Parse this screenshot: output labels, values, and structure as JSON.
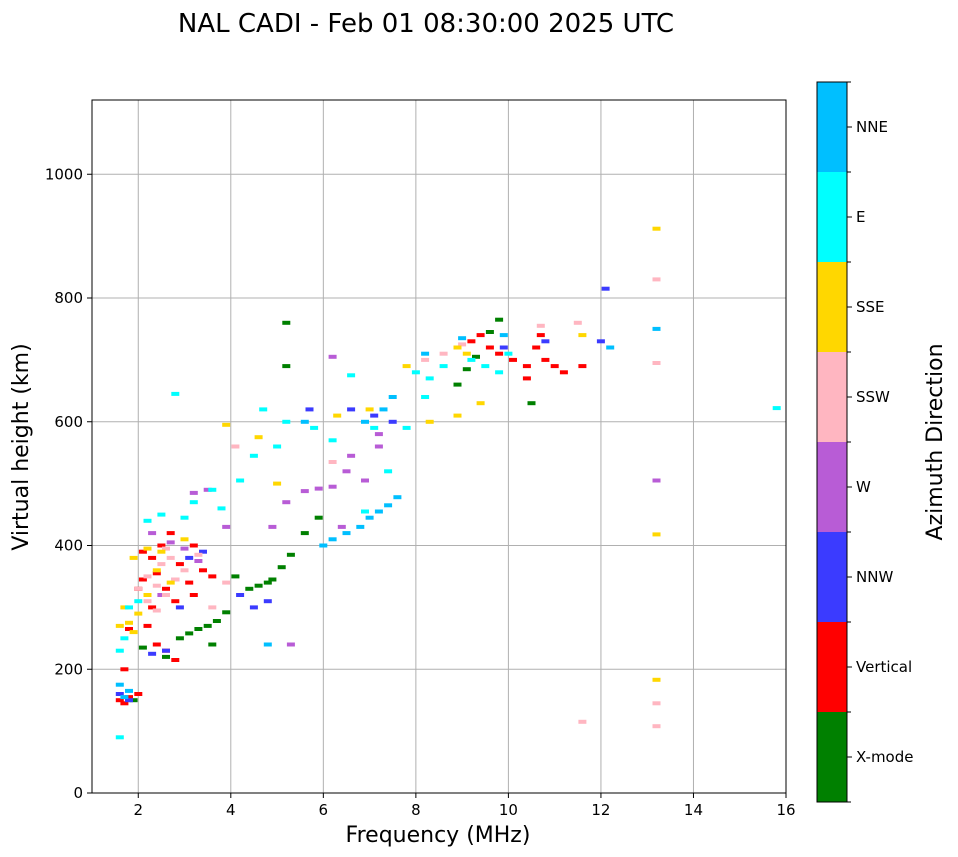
{
  "chart_data": {
    "type": "scatter",
    "title": "NAL CADI - Feb 01 08:30:00 2025 UTC",
    "xlabel": "Frequency (MHz)",
    "ylabel": "Virtual height (km)",
    "xlim": [
      1,
      16
    ],
    "ylim": [
      0,
      1120
    ],
    "xticks": [
      2,
      4,
      6,
      8,
      10,
      12,
      14,
      16
    ],
    "yticks": [
      0,
      200,
      400,
      600,
      800,
      1000
    ],
    "grid": true,
    "colorbar": {
      "label": "Azimuth Direction",
      "categories": [
        {
          "name": "X-mode",
          "color": "#008000"
        },
        {
          "name": "Vertical",
          "color": "#ff0000"
        },
        {
          "name": "NNW",
          "color": "#3b3bff"
        },
        {
          "name": "W",
          "color": "#b85cd6"
        },
        {
          "name": "SSW",
          "color": "#ffb6c1"
        },
        {
          "name": "SSE",
          "color": "#ffd700"
        },
        {
          "name": "E",
          "color": "#00ffff"
        },
        {
          "name": "NNE",
          "color": "#00bfff"
        }
      ]
    },
    "series": [
      {
        "name": "X-mode",
        "points": [
          [
            1.9,
            150
          ],
          [
            2.6,
            220
          ],
          [
            2.9,
            250
          ],
          [
            3.1,
            258
          ],
          [
            3.3,
            265
          ],
          [
            3.5,
            270
          ],
          [
            3.7,
            278
          ],
          [
            3.9,
            292
          ],
          [
            4.1,
            350
          ],
          [
            4.4,
            330
          ],
          [
            4.6,
            335
          ],
          [
            4.9,
            345
          ],
          [
            5.1,
            365
          ],
          [
            5.3,
            385
          ],
          [
            5.6,
            420
          ],
          [
            5.9,
            445
          ],
          [
            5.2,
            760
          ],
          [
            5.2,
            690
          ],
          [
            8.9,
            660
          ],
          [
            9.1,
            685
          ],
          [
            9.3,
            705
          ],
          [
            9.6,
            745
          ],
          [
            9.8,
            765
          ],
          [
            10.5,
            630
          ],
          [
            2.1,
            235
          ],
          [
            4.8,
            340
          ],
          [
            3.6,
            240
          ]
        ]
      },
      {
        "name": "Vertical",
        "points": [
          [
            1.6,
            150
          ],
          [
            1.7,
            145
          ],
          [
            1.8,
            155
          ],
          [
            2.0,
            160
          ],
          [
            1.7,
            200
          ],
          [
            1.8,
            265
          ],
          [
            2.2,
            270
          ],
          [
            2.4,
            240
          ],
          [
            2.6,
            230
          ],
          [
            2.8,
            215
          ],
          [
            2.0,
            330
          ],
          [
            2.1,
            345
          ],
          [
            2.3,
            300
          ],
          [
            2.4,
            355
          ],
          [
            2.6,
            330
          ],
          [
            2.8,
            310
          ],
          [
            2.9,
            370
          ],
          [
            3.1,
            340
          ],
          [
            3.2,
            320
          ],
          [
            3.4,
            360
          ],
          [
            3.6,
            350
          ],
          [
            2.1,
            390
          ],
          [
            2.3,
            380
          ],
          [
            2.5,
            400
          ],
          [
            3.2,
            400
          ],
          [
            2.7,
            420
          ],
          [
            9.2,
            730
          ],
          [
            9.4,
            740
          ],
          [
            9.6,
            720
          ],
          [
            9.8,
            710
          ],
          [
            10.1,
            700
          ],
          [
            10.4,
            690
          ],
          [
            10.6,
            720
          ],
          [
            10.8,
            700
          ],
          [
            11.0,
            690
          ],
          [
            11.2,
            680
          ],
          [
            11.6,
            690
          ],
          [
            10.4,
            670
          ],
          [
            10.7,
            740
          ]
        ]
      },
      {
        "name": "NNW",
        "points": [
          [
            1.6,
            160
          ],
          [
            1.8,
            150
          ],
          [
            2.3,
            225
          ],
          [
            2.6,
            230
          ],
          [
            3.1,
            380
          ],
          [
            3.4,
            390
          ],
          [
            4.2,
            320
          ],
          [
            4.5,
            300
          ],
          [
            4.8,
            310
          ],
          [
            5.7,
            620
          ],
          [
            6.6,
            620
          ],
          [
            7.1,
            610
          ],
          [
            7.5,
            600
          ],
          [
            9.9,
            720
          ],
          [
            10.8,
            730
          ],
          [
            12.1,
            815
          ],
          [
            12.0,
            730
          ],
          [
            2.9,
            300
          ]
        ]
      },
      {
        "name": "W",
        "points": [
          [
            2.3,
            420
          ],
          [
            2.7,
            405
          ],
          [
            3.0,
            395
          ],
          [
            3.3,
            375
          ],
          [
            3.5,
            490
          ],
          [
            3.2,
            485
          ],
          [
            3.9,
            430
          ],
          [
            4.9,
            430
          ],
          [
            5.2,
            470
          ],
          [
            5.6,
            488
          ],
          [
            5.9,
            492
          ],
          [
            6.2,
            495
          ],
          [
            6.5,
            520
          ],
          [
            6.6,
            545
          ],
          [
            6.9,
            505
          ],
          [
            7.2,
            560
          ],
          [
            6.4,
            430
          ],
          [
            5.3,
            240
          ],
          [
            6.2,
            705
          ],
          [
            7.2,
            580
          ],
          [
            13.2,
            505
          ],
          [
            2.8,
            345
          ],
          [
            2.5,
            320
          ]
        ]
      },
      {
        "name": "SSW",
        "points": [
          [
            2.0,
            330
          ],
          [
            2.2,
            350
          ],
          [
            2.4,
            335
          ],
          [
            2.6,
            320
          ],
          [
            2.8,
            345
          ],
          [
            3.0,
            360
          ],
          [
            2.5,
            370
          ],
          [
            2.7,
            380
          ],
          [
            3.3,
            385
          ],
          [
            2.2,
            310
          ],
          [
            2.4,
            295
          ],
          [
            3.6,
            300
          ],
          [
            3.9,
            340
          ],
          [
            2.6,
            395
          ],
          [
            8.2,
            700
          ],
          [
            8.6,
            710
          ],
          [
            9.0,
            725
          ],
          [
            10.7,
            755
          ],
          [
            11.5,
            760
          ],
          [
            11.6,
            115
          ],
          [
            13.2,
            830
          ],
          [
            13.2,
            695
          ],
          [
            13.2,
            145
          ],
          [
            13.2,
            108
          ],
          [
            4.1,
            560
          ],
          [
            6.2,
            535
          ]
        ]
      },
      {
        "name": "SSE",
        "points": [
          [
            1.6,
            270
          ],
          [
            1.8,
            275
          ],
          [
            1.9,
            260
          ],
          [
            2.0,
            290
          ],
          [
            2.2,
            320
          ],
          [
            2.4,
            360
          ],
          [
            1.9,
            380
          ],
          [
            2.2,
            395
          ],
          [
            2.5,
            390
          ],
          [
            2.7,
            340
          ],
          [
            3.9,
            595
          ],
          [
            4.6,
            575
          ],
          [
            5.0,
            500
          ],
          [
            6.3,
            610
          ],
          [
            7.0,
            620
          ],
          [
            7.8,
            690
          ],
          [
            8.3,
            600
          ],
          [
            8.9,
            610
          ],
          [
            8.9,
            720
          ],
          [
            9.1,
            710
          ],
          [
            9.4,
            630
          ],
          [
            11.6,
            740
          ],
          [
            13.2,
            912
          ],
          [
            13.2,
            418
          ],
          [
            13.2,
            183
          ],
          [
            3.0,
            410
          ],
          [
            1.7,
            300
          ]
        ]
      },
      {
        "name": "E",
        "points": [
          [
            1.6,
            90
          ],
          [
            1.6,
            230
          ],
          [
            1.7,
            250
          ],
          [
            1.8,
            300
          ],
          [
            2.0,
            310
          ],
          [
            2.2,
            440
          ],
          [
            2.5,
            450
          ],
          [
            3.0,
            445
          ],
          [
            3.2,
            470
          ],
          [
            3.6,
            490
          ],
          [
            2.8,
            645
          ],
          [
            3.8,
            460
          ],
          [
            4.2,
            505
          ],
          [
            4.5,
            545
          ],
          [
            5.0,
            560
          ],
          [
            5.2,
            600
          ],
          [
            5.8,
            590
          ],
          [
            6.2,
            570
          ],
          [
            6.6,
            675
          ],
          [
            7.1,
            590
          ],
          [
            7.4,
            520
          ],
          [
            7.8,
            590
          ],
          [
            8.0,
            680
          ],
          [
            8.3,
            670
          ],
          [
            8.6,
            690
          ],
          [
            8.2,
            640
          ],
          [
            9.2,
            700
          ],
          [
            9.5,
            690
          ],
          [
            9.8,
            680
          ],
          [
            10.0,
            710
          ],
          [
            15.8,
            622
          ],
          [
            6.9,
            455
          ],
          [
            4.7,
            620
          ]
        ]
      },
      {
        "name": "NNE",
        "points": [
          [
            1.7,
            155
          ],
          [
            1.8,
            165
          ],
          [
            1.6,
            175
          ],
          [
            5.6,
            600
          ],
          [
            6.0,
            400
          ],
          [
            6.2,
            410
          ],
          [
            6.5,
            420
          ],
          [
            6.8,
            430
          ],
          [
            7.0,
            445
          ],
          [
            7.2,
            455
          ],
          [
            7.4,
            465
          ],
          [
            7.6,
            478
          ],
          [
            7.5,
            640
          ],
          [
            8.2,
            710
          ],
          [
            9.0,
            735
          ],
          [
            9.9,
            740
          ],
          [
            12.2,
            720
          ],
          [
            13.2,
            750
          ],
          [
            4.8,
            240
          ],
          [
            6.9,
            600
          ],
          [
            7.3,
            620
          ]
        ]
      }
    ]
  }
}
